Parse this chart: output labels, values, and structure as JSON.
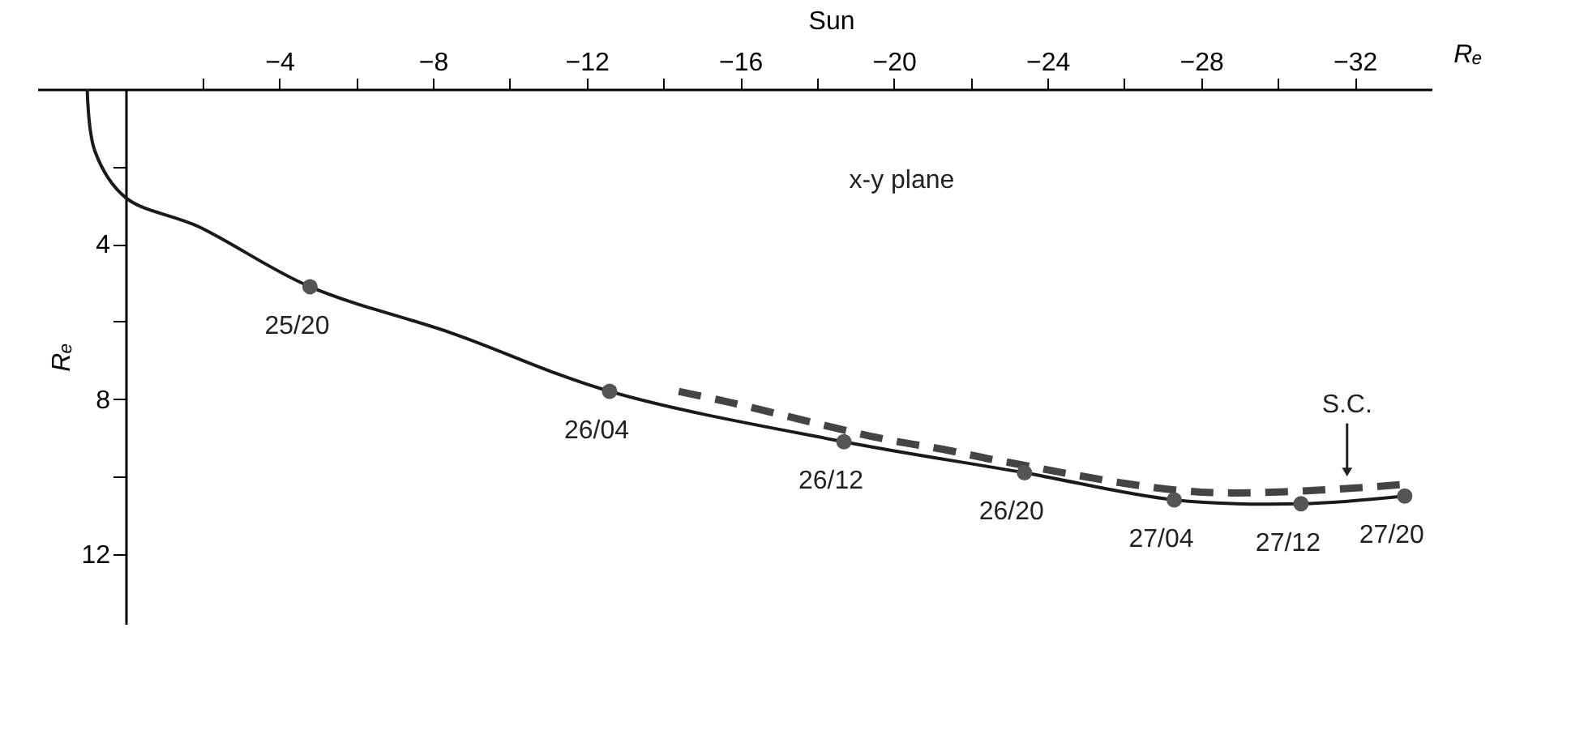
{
  "chart_data": {
    "type": "line",
    "title": "Sun",
    "xlabel": "Rₑ",
    "ylabel": "Rₑ",
    "xlim": [
      2.3,
      -34
    ],
    "ylim": [
      13.8,
      0
    ],
    "xticks": [
      {
        "value": -2,
        "label": null
      },
      -4,
      {
        "value": -6,
        "label": null
      },
      -8,
      {
        "value": -10,
        "label": null
      },
      -12,
      {
        "value": -14,
        "label": null
      },
      -16,
      {
        "value": -18,
        "label": null
      },
      -20,
      {
        "value": -22,
        "label": null
      },
      -24,
      {
        "value": -26,
        "label": null
      },
      -28,
      {
        "value": -30,
        "label": null
      },
      -32
    ],
    "yticks": [
      {
        "value": 2,
        "label": null
      },
      4,
      {
        "value": 6,
        "label": null
      },
      8,
      {
        "value": 10,
        "label": null
      },
      12
    ],
    "grid": false,
    "series": [
      {
        "color": "#1a1a1a",
        "line_style": "solid",
        "x": [
          1.0,
          0.8,
          0.0,
          -1.9,
          -4.8,
          -8.5,
          -12.6,
          -18.7,
          -23.4,
          -27.3,
          -30.6,
          -33.3
        ],
        "values": [
          0.0,
          1.6,
          2.8,
          3.55,
          5.1,
          6.3,
          7.8,
          9.1,
          9.9,
          10.6,
          10.7,
          10.5
        ]
      },
      {
        "color": "#444444",
        "line_style": "dashed",
        "x": [
          -14.4,
          -15.8,
          -19.6,
          -21.3,
          -22.8,
          -28.0,
          -33.3
        ],
        "values": [
          7.8,
          8.1,
          9.0,
          9.3,
          9.6,
          10.4,
          10.2
        ]
      },
      {
        "type": "scatter",
        "color": "#555555",
        "marker": "circle",
        "x": [
          -4.8,
          -12.6,
          -18.7,
          -23.4,
          -27.3,
          -30.6,
          -33.3
        ],
        "values": [
          5.1,
          7.8,
          9.1,
          9.9,
          10.6,
          10.7,
          10.5
        ]
      }
    ],
    "annotations": [
      "x-y plane",
      {
        "text": "25/20",
        "x": -4.8,
        "y": 5.1
      },
      {
        "text": "26/04",
        "x": -12.6,
        "y": 7.8
      },
      {
        "text": "26/12",
        "x": -18.7,
        "y": 9.1
      },
      {
        "text": "26/20",
        "x": -23.4,
        "y": 9.9
      },
      {
        "text": "27/04",
        "x": -27.3,
        "y": 10.6
      },
      {
        "text": "27/12",
        "x": -30.6,
        "y": 10.7
      },
      {
        "text": "27/20",
        "x": -33.3,
        "y": 10.5
      },
      {
        "text": "S.C.",
        "x": -31.8,
        "y": 10.3
      }
    ]
  }
}
